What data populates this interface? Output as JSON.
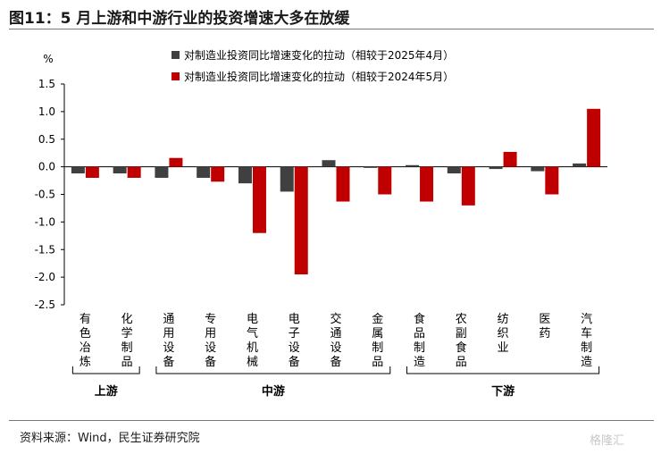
{
  "title": "图11：5 月上游和中游行业的投资增速大多在放缓",
  "source": "资料来源：Wind，民生证券研究院",
  "watermark": "格隆汇",
  "chart_data": {
    "type": "bar",
    "ylabel": "%",
    "ylim": [
      -2.5,
      1.5
    ],
    "yticks": [
      "1.5",
      "1.0",
      "0.5",
      "0.0",
      "-0.5",
      "-1.0",
      "-1.5",
      "-2.0",
      "-2.5"
    ],
    "categories": [
      "有色冶炼",
      "化学制品",
      "通用设备",
      "专用设备",
      "电气机械",
      "电子设备",
      "交通设备",
      "金属制品",
      "食品制造",
      "农副食品",
      "纺织业",
      "医药",
      "汽车制造"
    ],
    "series": [
      {
        "name": "对制造业投资同比增速变化的拉动（相较于2025年4月）",
        "color": "#404040",
        "values": [
          -0.12,
          -0.12,
          -0.2,
          -0.2,
          -0.3,
          -0.45,
          0.12,
          -0.02,
          0.03,
          -0.12,
          -0.04,
          -0.08,
          0.06
        ]
      },
      {
        "name": "对制造业投资同比增速变化的拉动（相较于2024年5月）",
        "color": "#c00000",
        "values": [
          -0.2,
          -0.2,
          0.16,
          -0.27,
          -1.2,
          -1.95,
          -0.63,
          -0.5,
          -0.63,
          -0.7,
          0.27,
          -0.5,
          1.05
        ]
      }
    ],
    "groups": [
      {
        "label": "上游",
        "start": 0,
        "end": 1
      },
      {
        "label": "中游",
        "start": 2,
        "end": 7
      },
      {
        "label": "下游",
        "start": 8,
        "end": 12
      }
    ]
  }
}
